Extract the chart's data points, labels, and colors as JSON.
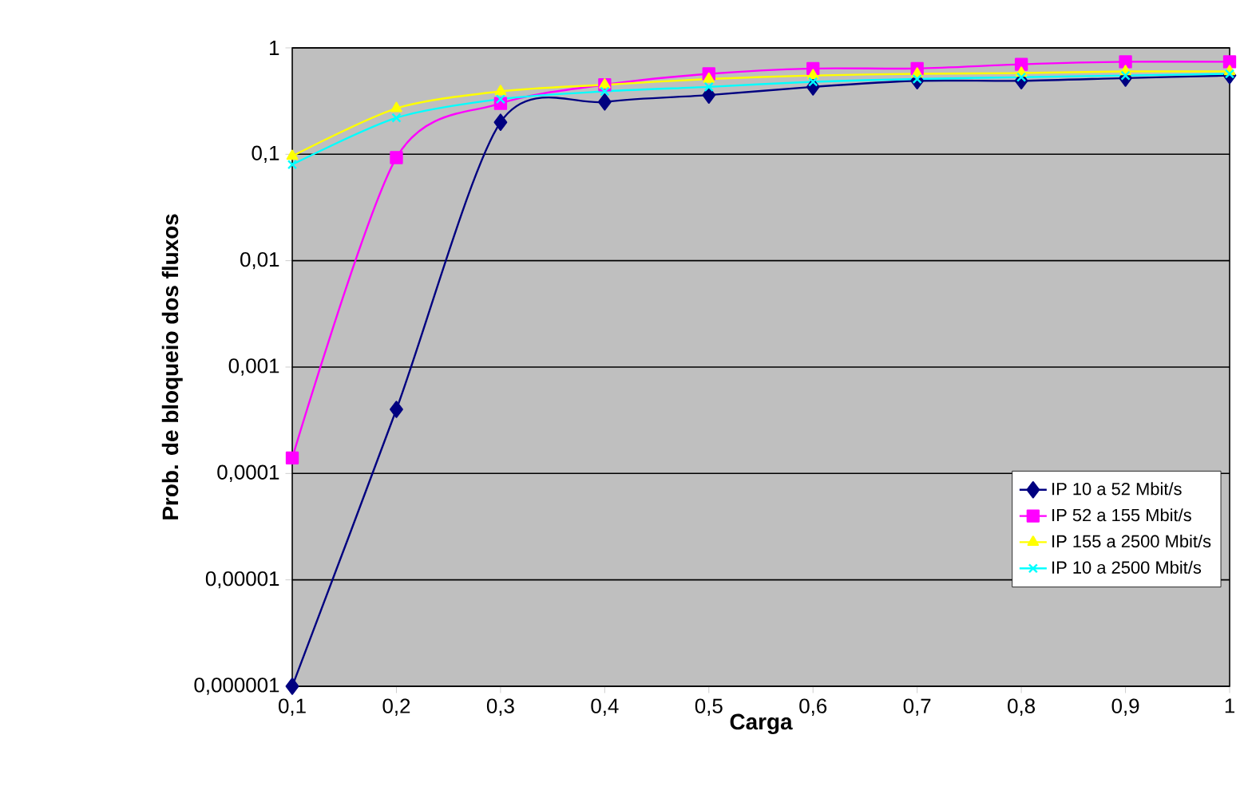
{
  "chart_data": {
    "type": "line",
    "xlabel": "Carga",
    "ylabel": "Prob. de bloqueio dos fluxos",
    "x": [
      0.1,
      0.2,
      0.3,
      0.4,
      0.5,
      0.6,
      0.7,
      0.8,
      0.9,
      1.0
    ],
    "series": [
      {
        "name": "IP 10 a 52 Mbit/s",
        "color": "#000080",
        "marker": "diamond",
        "values": [
          1e-06,
          0.0004,
          0.2,
          0.31,
          0.36,
          0.43,
          0.49,
          0.49,
          0.52,
          0.55
        ]
      },
      {
        "name": "IP 52 a 155 Mbit/s",
        "color": "#ff00ff",
        "marker": "square",
        "values": [
          0.00014,
          0.093,
          0.3,
          0.45,
          0.57,
          0.64,
          0.64,
          0.7,
          0.74,
          0.74
        ]
      },
      {
        "name": "IP 155 a 2500 Mbit/s",
        "color": "#ffff00",
        "marker": "triangle",
        "values": [
          0.096,
          0.27,
          0.39,
          0.45,
          0.51,
          0.55,
          0.57,
          0.58,
          0.6,
          0.6
        ]
      },
      {
        "name": "IP 10 a 2500 Mbit/s",
        "color": "#00ffff",
        "marker": "cross",
        "values": [
          0.08,
          0.22,
          0.33,
          0.39,
          0.43,
          0.48,
          0.51,
          0.53,
          0.55,
          0.57
        ]
      }
    ],
    "log": "y",
    "grid": "y",
    "legend": "bottom right",
    "xlim": [
      0.1,
      1.0
    ],
    "ylim": [
      1e-06,
      1
    ],
    "xticks": [
      {
        "value": 0.1,
        "label": "0,1"
      },
      {
        "value": 0.2,
        "label": "0,2"
      },
      {
        "value": 0.3,
        "label": "0,3"
      },
      {
        "value": 0.4,
        "label": "0,4"
      },
      {
        "value": 0.5,
        "label": "0,5"
      },
      {
        "value": 0.6,
        "label": "0,6"
      },
      {
        "value": 0.7,
        "label": "0,7"
      },
      {
        "value": 0.8,
        "label": "0,8"
      },
      {
        "value": 0.9,
        "label": "0,9"
      },
      1
    ],
    "yticks": [
      {
        "value": 1e-06,
        "label": "0,000001"
      },
      {
        "value": 1e-05,
        "label": "0,00001"
      },
      {
        "value": 0.0001,
        "label": "0,0001"
      },
      {
        "value": 0.001,
        "label": "0,001"
      },
      {
        "value": 0.01,
        "label": "0,01"
      },
      {
        "value": 0.1,
        "label": "0,1"
      },
      1
    ]
  }
}
